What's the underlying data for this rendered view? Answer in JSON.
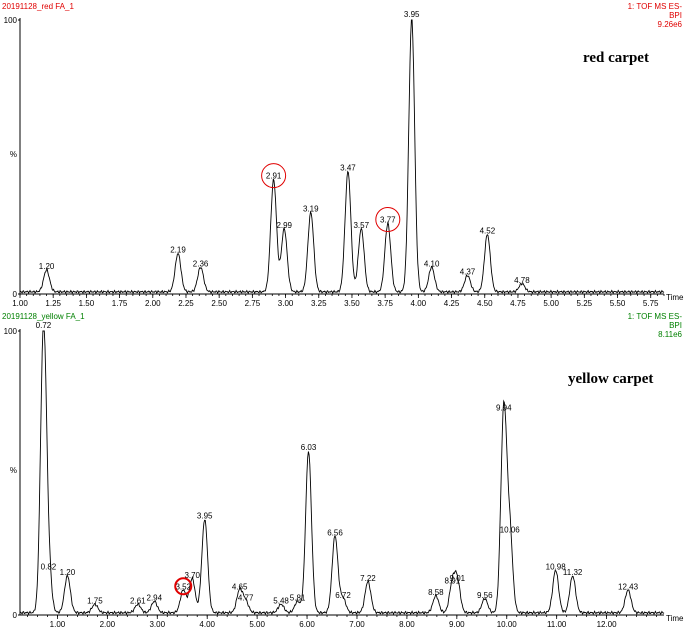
{
  "panels": [
    {
      "header_left": "20191128_red FA_1",
      "header_right_lines": [
        "1: TOF MS ES-",
        "BPI",
        "9.26e6"
      ],
      "header_color": "#e00000",
      "label": "red carpet"
    },
    {
      "header_left": "20191128_yellow FA_1",
      "header_right_lines": [
        "1: TOF MS ES-",
        "BPI",
        "8.11e6"
      ],
      "header_color": "#008000",
      "label": "yellow carpet"
    }
  ],
  "chart_data": [
    {
      "type": "line",
      "title": "red carpet",
      "xlabel": "Time",
      "ylabel": "%",
      "xlim": [
        1.0,
        5.85
      ],
      "ylim": [
        0,
        100
      ],
      "x_ticks": [
        "1.00",
        "1.25",
        "1.50",
        "1.75",
        "2.00",
        "2.25",
        "2.50",
        "2.75",
        "3.00",
        "3.25",
        "3.50",
        "3.75",
        "4.00",
        "4.25",
        "4.50",
        "4.75",
        "5.00",
        "5.25",
        "5.50",
        "5.75"
      ],
      "y_ticks": [
        "0",
        "%",
        "100"
      ],
      "line_color": "#000000",
      "peaks": [
        {
          "x": 1.2,
          "y": 8,
          "label": "1.20"
        },
        {
          "x": 2.19,
          "y": 14,
          "label": "2.19"
        },
        {
          "x": 2.36,
          "y": 9,
          "label": "2.36"
        },
        {
          "x": 2.91,
          "y": 41,
          "label": "2.91",
          "circled": true
        },
        {
          "x": 2.99,
          "y": 23,
          "label": "2.99"
        },
        {
          "x": 3.19,
          "y": 29,
          "label": "3.19"
        },
        {
          "x": 3.47,
          "y": 44,
          "label": "3.47"
        },
        {
          "x": 3.57,
          "y": 23,
          "label": "3.57"
        },
        {
          "x": 3.77,
          "y": 25,
          "label": "3.77",
          "circled": true
        },
        {
          "x": 3.95,
          "y": 100,
          "label": "3.95"
        },
        {
          "x": 4.1,
          "y": 9,
          "label": "4.10"
        },
        {
          "x": 4.37,
          "y": 6,
          "label": "4.37"
        },
        {
          "x": 4.52,
          "y": 21,
          "label": "4.52"
        },
        {
          "x": 4.78,
          "y": 3,
          "label": "4.78"
        }
      ]
    },
    {
      "type": "line",
      "title": "yellow carpet",
      "xlabel": "Time",
      "ylabel": "%",
      "xlim": [
        0.25,
        13.15
      ],
      "ylim": [
        0,
        100
      ],
      "x_ticks": [
        "1.00",
        "2.00",
        "3.00",
        "4.00",
        "5.00",
        "6.00",
        "7.00",
        "8.00",
        "9.00",
        "10.00",
        "11.00",
        "12.00"
      ],
      "y_ticks": [
        "0",
        "%",
        "100"
      ],
      "line_color": "#000000",
      "peaks": [
        {
          "x": 0.72,
          "y": 100,
          "label": "0.72"
        },
        {
          "x": 0.82,
          "y": 15,
          "label": "0.82"
        },
        {
          "x": 1.2,
          "y": 13,
          "label": "1.20"
        },
        {
          "x": 1.75,
          "y": 3,
          "label": "1.75"
        },
        {
          "x": 2.61,
          "y": 3,
          "label": "2.61"
        },
        {
          "x": 2.94,
          "y": 4,
          "label": "2.94"
        },
        {
          "x": 3.52,
          "y": 8,
          "label": "3.52",
          "circled": true
        },
        {
          "x": 3.7,
          "y": 12,
          "label": "3.70"
        },
        {
          "x": 3.95,
          "y": 33,
          "label": "3.95"
        },
        {
          "x": 4.65,
          "y": 8,
          "label": "4.65"
        },
        {
          "x": 4.77,
          "y": 4,
          "label": "4.77"
        },
        {
          "x": 5.48,
          "y": 3,
          "label": "5.48"
        },
        {
          "x": 5.81,
          "y": 4,
          "label": "5.81"
        },
        {
          "x": 6.03,
          "y": 57,
          "label": "6.03"
        },
        {
          "x": 6.56,
          "y": 27,
          "label": "6.56"
        },
        {
          "x": 6.72,
          "y": 5,
          "label": "6.72"
        },
        {
          "x": 7.22,
          "y": 11,
          "label": "7.22"
        },
        {
          "x": 8.58,
          "y": 6,
          "label": "8.58"
        },
        {
          "x": 8.91,
          "y": 10,
          "label": "8.91"
        },
        {
          "x": 9.01,
          "y": 11,
          "label": "9.01"
        },
        {
          "x": 9.56,
          "y": 5,
          "label": "9.56"
        },
        {
          "x": 9.94,
          "y": 71,
          "label": "9.94"
        },
        {
          "x": 10.06,
          "y": 28,
          "label": "10.06"
        },
        {
          "x": 10.98,
          "y": 15,
          "label": "10.98"
        },
        {
          "x": 11.32,
          "y": 13,
          "label": "11.32"
        },
        {
          "x": 12.43,
          "y": 8,
          "label": "12.43"
        }
      ]
    }
  ]
}
